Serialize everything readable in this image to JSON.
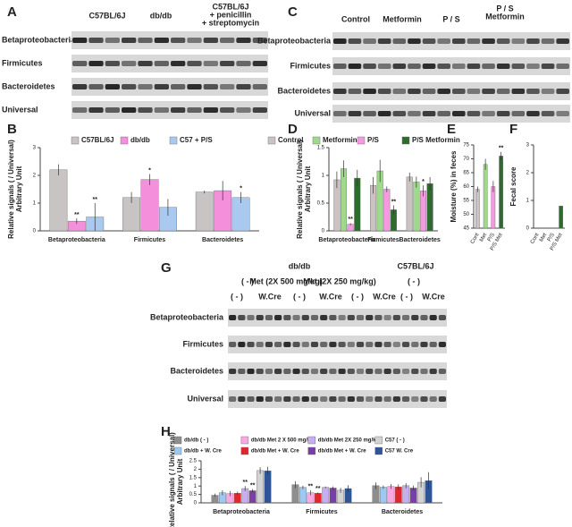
{
  "gels": [
    {
      "label": "A",
      "headers": [
        [
          "C57BL/6J"
        ],
        [
          "db/db"
        ],
        [
          "C57BL/6J",
          "+ penicillin",
          "+ streptomycin"
        ]
      ],
      "rows": [
        "Betaproteobacteria",
        "Firmicutes",
        "Bacteroidetes",
        "Universal"
      ]
    },
    {
      "label": "C",
      "headers": [
        [
          "Control"
        ],
        [
          "Metformin"
        ],
        [
          "P / S"
        ],
        [
          "P / S",
          "Metformin"
        ]
      ],
      "rows": [
        "Betaproteobacteria",
        "Firmicutes",
        "Bacteroidetes",
        "Universal"
      ]
    },
    {
      "label": "G",
      "headers": [
        [
          "db/db"
        ],
        [
          "C57BL/6J"
        ],
        [
          "( - )"
        ],
        [
          "Met (2X 500 mg/kg)"
        ],
        [
          "Met (2X 250 mg/kg)"
        ],
        [
          "( - )"
        ],
        [
          "( - )"
        ],
        [
          "W.Cre"
        ],
        [
          "( - )"
        ],
        [
          "W.Cre"
        ],
        [
          "( - )"
        ],
        [
          "W.Cre"
        ],
        [
          "( - )"
        ],
        [
          "W.Cre"
        ]
      ],
      "rows": [
        "Betaproteobacteria",
        "Firmicutes",
        "Bacteroidetes",
        "Universal"
      ]
    }
  ],
  "chart_data": [
    {
      "type": "bar",
      "label": "B",
      "ylabel": [
        "Relative signals ( / Universal)",
        "Arbitrary Unit"
      ],
      "categories": [
        "Betaproteobacteria",
        "Firmicutes",
        "Bacteroidetes"
      ],
      "ylim": [
        0,
        3
      ],
      "yticks": [
        0,
        1,
        2,
        3
      ],
      "series": [
        {
          "name": "C57BL/6J",
          "color": "#c9c4c4",
          "values": [
            2.2,
            1.2,
            1.4
          ],
          "errors": [
            0.2,
            0.2,
            0.05
          ],
          "significance": [
            null,
            null,
            null
          ]
        },
        {
          "name": "db/db",
          "color": "#f48fdc",
          "values": [
            0.35,
            1.85,
            1.45
          ],
          "errors": [
            0.1,
            0.2,
            0.35
          ],
          "significance": [
            "**",
            "*",
            null
          ]
        },
        {
          "name": "C57 + P/S",
          "color": "#a9c9f1",
          "values": [
            0.5,
            0.85,
            1.2
          ],
          "errors": [
            0.5,
            0.3,
            0.2
          ],
          "significance": [
            "**",
            null,
            "*"
          ]
        }
      ]
    },
    {
      "type": "bar",
      "label": "D",
      "ylabel": [
        "Relative signals ( / Universal)",
        "Arbitrary Unit"
      ],
      "categories": [
        "Betaproteobacteria",
        "Firmicutes",
        "Bacteroidetes"
      ],
      "ylim": [
        0,
        1.5
      ],
      "yticks": [
        0,
        0.5,
        1,
        1.5
      ],
      "series": [
        {
          "name": "Control",
          "color": "#cbc3c3",
          "values": [
            0.92,
            0.82,
            0.97
          ],
          "errors": [
            0.15,
            0.15,
            0.08
          ],
          "significance": [
            null,
            null,
            null
          ]
        },
        {
          "name": "Metformin",
          "color": "#9fd98b",
          "values": [
            1.12,
            1.08,
            0.88
          ],
          "errors": [
            0.15,
            0.2,
            0.1
          ],
          "significance": [
            null,
            null,
            null
          ]
        },
        {
          "name": "P/S",
          "color": "#f59ae0",
          "values": [
            0.12,
            0.75,
            0.72
          ],
          "errors": [
            0.02,
            0.05,
            0.1
          ],
          "significance": [
            "**",
            null,
            "*"
          ]
        },
        {
          "name": "P/S Metformin",
          "color": "#2e6b2e",
          "values": [
            0.95,
            0.38,
            0.85
          ],
          "errors": [
            0.15,
            0.08,
            0.12
          ],
          "significance": [
            null,
            "**",
            null
          ]
        }
      ]
    },
    {
      "type": "bar",
      "label": "E",
      "ylabel": [
        "Moisture (%) in feces"
      ],
      "categories": [
        "Cont",
        "Met",
        "P/S",
        "P/S Met"
      ],
      "ylim": [
        45,
        75
      ],
      "yticks": [
        45,
        50,
        55,
        60,
        65,
        70,
        75
      ],
      "series": [
        {
          "colors": [
            "#cbc3c3",
            "#9fd98b",
            "#f59ae0",
            "#2e6b2e"
          ],
          "values": [
            59,
            68,
            60,
            71
          ],
          "errors": [
            1,
            2,
            2,
            1.5
          ],
          "significance": [
            null,
            null,
            null,
            "**"
          ]
        }
      ]
    },
    {
      "type": "bar",
      "label": "F",
      "ylabel": [
        "Fecal score"
      ],
      "categories": [
        "Cont",
        "Met",
        "P/S",
        "P/S Met"
      ],
      "ylim": [
        0,
        3
      ],
      "yticks": [
        0,
        1,
        2,
        3
      ],
      "series": [
        {
          "colors": [
            "#cbc3c3",
            "#9fd98b",
            "#f59ae0",
            "#2e6b2e"
          ],
          "values": [
            0,
            0,
            0,
            0.8
          ],
          "errors": [
            0,
            0,
            0,
            0
          ],
          "significance": [
            null,
            null,
            null,
            null
          ]
        }
      ]
    },
    {
      "type": "bar",
      "label": "H",
      "ylabel": [
        "Relative signals ( / Universal)",
        "Arbitrary Unit"
      ],
      "categories": [
        "Betaproteobacteria",
        "Firmicutes",
        "Bacteroidetes"
      ],
      "ylim": [
        0,
        2.5
      ],
      "yticks": [
        0,
        0.5,
        1,
        1.5,
        2,
        2.5
      ],
      "series": [
        {
          "name": "db/db ( - )",
          "color": "#8e8e8e",
          "values": [
            0.45,
            1.08,
            1.02
          ],
          "errors": [
            0.1,
            0.2,
            0.2
          ],
          "significance": [
            null,
            null,
            null
          ]
        },
        {
          "name": "db/db + W. Cre",
          "color": "#9dc8f1",
          "values": [
            0.6,
            0.92,
            0.93
          ],
          "errors": [
            0.15,
            0.1,
            0.1
          ],
          "significance": [
            null,
            null,
            null
          ]
        },
        {
          "name": "db/db Met 2 X 500 mg/kg",
          "color": "#f7a9e1",
          "values": [
            0.55,
            0.6,
            0.97
          ],
          "errors": [
            0.15,
            0.15,
            0.15
          ],
          "significance": [
            null,
            "**",
            null
          ]
        },
        {
          "name": "db/db Met + W. Cre",
          "color": "#e1272c",
          "values": [
            0.57,
            0.57,
            0.95
          ],
          "errors": [
            0.1,
            0.05,
            0.15
          ],
          "significance": [
            null,
            "**",
            null
          ]
        },
        {
          "name": "db/db Met 2X 250 mg/kg",
          "color": "#c8aef0",
          "values": [
            0.85,
            0.92,
            1.02
          ],
          "errors": [
            0.15,
            0.05,
            0.15
          ],
          "significance": [
            "**",
            null,
            null
          ]
        },
        {
          "name": "db/db Met + W. Cre",
          "color": "#7a3ea8",
          "values": [
            0.72,
            0.88,
            0.88
          ],
          "errors": [
            0.1,
            0.1,
            0.15
          ],
          "significance": [
            "**",
            null,
            null
          ]
        },
        {
          "name": "C57 ( - )",
          "color": "#d3d3d3",
          "values": [
            1.92,
            0.75,
            1.22
          ],
          "errors": [
            0.2,
            0.15,
            0.3
          ],
          "significance": [
            null,
            null,
            null
          ]
        },
        {
          "name": "C57 W. Cre",
          "color": "#2f5597",
          "values": [
            1.9,
            0.85,
            1.32
          ],
          "errors": [
            0.25,
            0.2,
            0.5
          ],
          "significance": [
            null,
            null,
            null
          ]
        }
      ]
    }
  ]
}
